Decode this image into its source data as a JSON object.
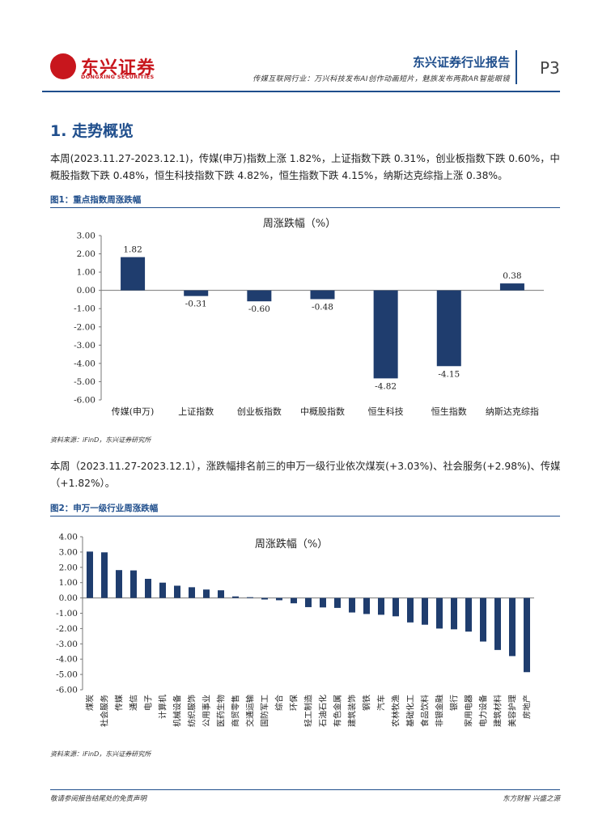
{
  "header": {
    "logo_text": "东兴证券",
    "logo_en": "DONGXING SECURITIES",
    "report_title": "东兴证券行业报告",
    "subtitle": "传媒互联网行业：万兴科技发布AI创作动画短片，魅族发布两款AR智能眼镜",
    "page": "P3"
  },
  "section": {
    "title": "1. 走势概览",
    "para1": "本周(2023.11.27-2023.12.1)，传媒(申万)指数上涨 1.82%，上证指数下跌 0.31%，创业板指数下跌 0.60%，中概股指数下跌 0.48%，恒生科技指数下跌 4.82%，恒生指数下跌 4.15%，纳斯达克综指上涨 0.38%。",
    "para2": "本周（2023.11.27-2023.12.1），涨跌幅排名前三的申万一级行业依次煤炭(+3.03%)、社会服务(+2.98%)、传媒（+1.82%）。"
  },
  "figure1": {
    "label": "图1：重点指数周涨跌幅",
    "source": "资料来源：iFinD，东兴证券研究所"
  },
  "figure2": {
    "label": "图2：申万一级行业周涨跌幅",
    "source": "资料来源：iFinD，东兴证券研究所"
  },
  "footer": {
    "left": "敬请参阅报告结尾处的免责声明",
    "right": "东方财智 兴盛之源"
  },
  "colors": {
    "bar": "#1f3d6e",
    "accent": "#1f4e8c",
    "brand": "#c8161d"
  },
  "chart_data": [
    {
      "type": "bar",
      "title": "周涨跌幅（%）",
      "categories": [
        "传媒(申万)",
        "上证指数",
        "创业板指数",
        "中概股指数",
        "恒生科技",
        "恒生指数",
        "纳斯达克综指"
      ],
      "values": [
        1.82,
        -0.31,
        -0.6,
        -0.48,
        -4.82,
        -4.15,
        0.38
      ],
      "value_labels": [
        "1.82",
        "-0.31",
        "-0.60",
        "-0.48",
        "-4.82",
        "-4.15",
        "0.38"
      ],
      "ylim": [
        -6,
        3
      ],
      "yticks": [
        "3.00",
        "2.00",
        "1.00",
        "0.00",
        "-1.00",
        "-2.00",
        "-3.00",
        "-4.00",
        "-5.00",
        "-6.00"
      ],
      "grid": false
    },
    {
      "type": "bar",
      "title": "周涨跌幅（%）",
      "categories": [
        "煤炭",
        "社会服务",
        "传媒",
        "通信",
        "电子",
        "计算机",
        "机械设备",
        "纺织服饰",
        "公用事业",
        "医药生物",
        "商贸零售",
        "交通运输",
        "国防军工",
        "综合",
        "环保",
        "轻工制造",
        "石油石化",
        "有色金属",
        "建筑装饰",
        "钢铁",
        "汽车",
        "农林牧渔",
        "基础化工",
        "食品饮料",
        "非银金融",
        "银行",
        "家用电器",
        "电力设备",
        "建筑材料",
        "美容护理",
        "房地产"
      ],
      "values": [
        3.03,
        2.98,
        1.82,
        1.8,
        1.25,
        1.0,
        0.8,
        0.7,
        0.55,
        0.5,
        0.1,
        0.05,
        -0.1,
        -0.15,
        -0.35,
        -0.6,
        -0.62,
        -0.65,
        -0.95,
        -1.05,
        -1.1,
        -1.2,
        -1.6,
        -1.75,
        -2.0,
        -2.05,
        -2.2,
        -2.85,
        -3.4,
        -3.8,
        -4.85
      ],
      "ylim": [
        -6,
        4
      ],
      "yticks": [
        "4.00",
        "3.00",
        "2.00",
        "1.00",
        "0.00",
        "-1.00",
        "-2.00",
        "-3.00",
        "-4.00",
        "-5.00",
        "-6.00"
      ],
      "grid": false
    }
  ]
}
